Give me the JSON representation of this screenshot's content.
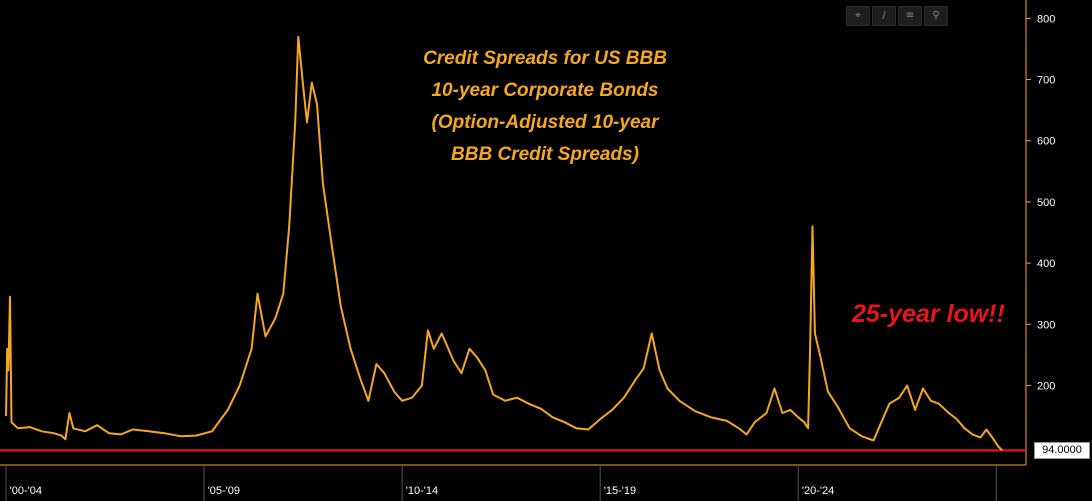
{
  "toolbar": {
    "icons": [
      "crosshair-icon",
      "draw-line-icon",
      "menu-icon",
      "search-icon"
    ]
  },
  "annotation": "25-year low!!",
  "last_value_label": "94.0000",
  "colors": {
    "background": "#000000",
    "series": "#f5a623",
    "reference_line": "#d0141a",
    "callout": "#e8141c",
    "axis": "#f5a623"
  },
  "chart_data": {
    "type": "line",
    "title_lines": [
      "Credit Spreads for US BBB",
      "10-year Corporate Bonds",
      "(Option-Adjusted 10-year",
      "BBB Credit Spreads)"
    ],
    "xlabel": "",
    "ylabel": "",
    "y_axis_position": "right",
    "ylim": [
      70,
      830
    ],
    "y_ticks": [
      200,
      300,
      400,
      500,
      600,
      700,
      800
    ],
    "xlim": [
      2000.0,
      2025.75
    ],
    "x_tick_labels": [
      {
        "label": "'00-'04",
        "at": 2000.5
      },
      {
        "label": "'05-'09",
        "at": 2005.5
      },
      {
        "label": "'10-'14",
        "at": 2010.5
      },
      {
        "label": "'15-'19",
        "at": 2015.5
      },
      {
        "label": "'20-'24",
        "at": 2020.5
      }
    ],
    "x_separators": [
      2000.0,
      2005.0,
      2010.0,
      2015.0,
      2020.0,
      2025.0
    ],
    "reference_line": {
      "y": 94,
      "label": "94.0000"
    },
    "grid": false,
    "series": [
      {
        "color": "#f5a623",
        "points": [
          [
            2000.0,
            150
          ],
          [
            2000.03,
            260
          ],
          [
            2000.06,
            225
          ],
          [
            2000.1,
            345
          ],
          [
            2000.14,
            140
          ],
          [
            2000.3,
            130
          ],
          [
            2000.6,
            132
          ],
          [
            2000.9,
            125
          ],
          [
            2001.2,
            122
          ],
          [
            2001.4,
            118
          ],
          [
            2001.5,
            112
          ],
          [
            2001.6,
            155
          ],
          [
            2001.7,
            130
          ],
          [
            2002.0,
            125
          ],
          [
            2002.3,
            135
          ],
          [
            2002.6,
            122
          ],
          [
            2002.9,
            120
          ],
          [
            2003.2,
            128
          ],
          [
            2003.6,
            125
          ],
          [
            2004.0,
            122
          ],
          [
            2004.4,
            117
          ],
          [
            2004.8,
            118
          ],
          [
            2005.2,
            125
          ],
          [
            2005.6,
            160
          ],
          [
            2005.9,
            200
          ],
          [
            2006.2,
            260
          ],
          [
            2006.35,
            350
          ],
          [
            2006.55,
            280
          ],
          [
            2006.8,
            310
          ],
          [
            2007.0,
            350
          ],
          [
            2007.15,
            460
          ],
          [
            2007.3,
            630
          ],
          [
            2007.38,
            770
          ],
          [
            2007.5,
            690
          ],
          [
            2007.6,
            630
          ],
          [
            2007.72,
            695
          ],
          [
            2007.85,
            660
          ],
          [
            2008.0,
            530
          ],
          [
            2008.2,
            440
          ],
          [
            2008.45,
            330
          ],
          [
            2008.7,
            260
          ],
          [
            2008.95,
            210
          ],
          [
            2009.15,
            175
          ],
          [
            2009.35,
            235
          ],
          [
            2009.55,
            220
          ],
          [
            2009.8,
            190
          ],
          [
            2010.0,
            175
          ],
          [
            2010.25,
            180
          ],
          [
            2010.5,
            200
          ],
          [
            2010.65,
            290
          ],
          [
            2010.8,
            260
          ],
          [
            2011.0,
            285
          ],
          [
            2011.3,
            240
          ],
          [
            2011.5,
            220
          ],
          [
            2011.7,
            260
          ],
          [
            2011.9,
            245
          ],
          [
            2012.1,
            225
          ],
          [
            2012.3,
            185
          ],
          [
            2012.6,
            175
          ],
          [
            2012.9,
            180
          ],
          [
            2013.2,
            170
          ],
          [
            2013.5,
            162
          ],
          [
            2013.8,
            148
          ],
          [
            2014.1,
            140
          ],
          [
            2014.4,
            130
          ],
          [
            2014.7,
            128
          ],
          [
            2015.0,
            145
          ],
          [
            2015.3,
            160
          ],
          [
            2015.6,
            180
          ],
          [
            2015.9,
            210
          ],
          [
            2016.1,
            228
          ],
          [
            2016.3,
            285
          ],
          [
            2016.5,
            225
          ],
          [
            2016.7,
            195
          ],
          [
            2017.0,
            175
          ],
          [
            2017.4,
            158
          ],
          [
            2017.8,
            148
          ],
          [
            2018.2,
            142
          ],
          [
            2018.5,
            130
          ],
          [
            2018.7,
            120
          ],
          [
            2018.9,
            140
          ],
          [
            2019.2,
            155
          ],
          [
            2019.4,
            195
          ],
          [
            2019.6,
            155
          ],
          [
            2019.8,
            160
          ],
          [
            2020.0,
            148
          ],
          [
            2020.15,
            140
          ],
          [
            2020.25,
            130
          ],
          [
            2020.3,
            260
          ],
          [
            2020.36,
            460
          ],
          [
            2020.42,
            285
          ],
          [
            2020.55,
            250
          ],
          [
            2020.75,
            190
          ],
          [
            2021.0,
            165
          ],
          [
            2021.3,
            130
          ],
          [
            2021.6,
            117
          ],
          [
            2021.9,
            110
          ],
          [
            2022.1,
            140
          ],
          [
            2022.3,
            170
          ],
          [
            2022.55,
            180
          ],
          [
            2022.75,
            200
          ],
          [
            2022.95,
            160
          ],
          [
            2023.15,
            195
          ],
          [
            2023.35,
            175
          ],
          [
            2023.55,
            170
          ],
          [
            2023.8,
            155
          ],
          [
            2024.0,
            145
          ],
          [
            2024.2,
            130
          ],
          [
            2024.4,
            120
          ],
          [
            2024.6,
            115
          ],
          [
            2024.75,
            128
          ],
          [
            2024.9,
            115
          ],
          [
            2025.05,
            100
          ],
          [
            2025.15,
            94
          ]
        ]
      }
    ]
  }
}
